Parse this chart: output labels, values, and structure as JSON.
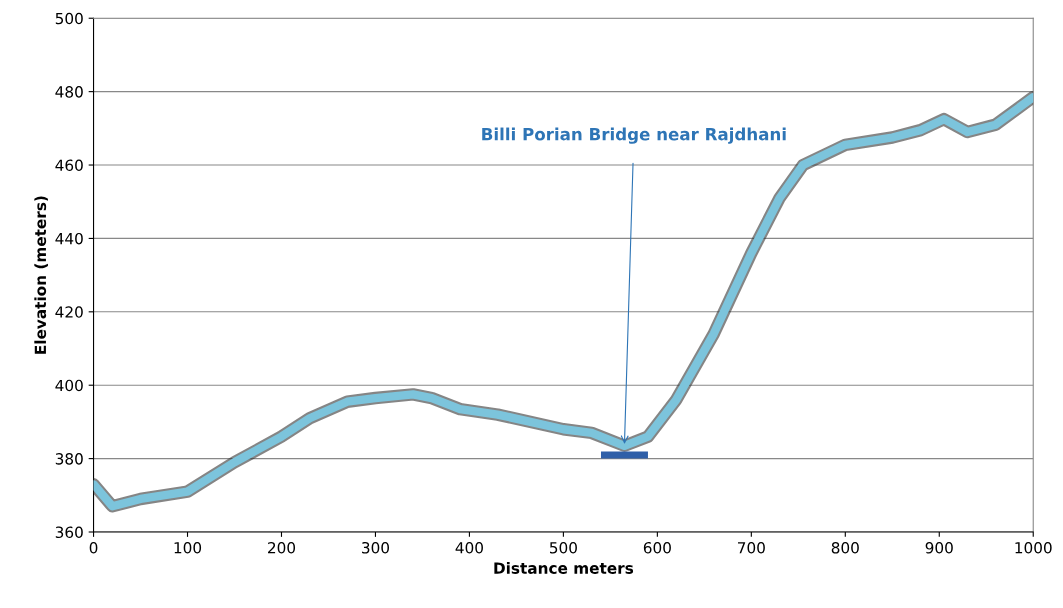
{
  "chart_data": {
    "type": "line",
    "xlabel": "Distance meters",
    "ylabel": "Elevation (meters)",
    "xlim": [
      0,
      1000
    ],
    "xticks": [
      0,
      100,
      200,
      300,
      400,
      500,
      600,
      700,
      800,
      900,
      1000
    ],
    "ylim": [
      360,
      500
    ],
    "yticks": [
      360,
      380,
      400,
      420,
      440,
      460,
      480,
      500
    ],
    "grid": "y",
    "legend": false,
    "series": [
      {
        "color": "#7cc4dc",
        "x": [
          0,
          20,
          50,
          100,
          150,
          200,
          230,
          270,
          300,
          340,
          360,
          390,
          430,
          500,
          530,
          565,
          590,
          620,
          660,
          700,
          730,
          755,
          800,
          850,
          880,
          905,
          930,
          960,
          1000
        ],
        "values": [
          373,
          367,
          369,
          371,
          379,
          386,
          391,
          395.5,
          396.5,
          397.5,
          396.5,
          393.5,
          392,
          388,
          387,
          383.5,
          386,
          396,
          414,
          436,
          451,
          460,
          465.5,
          467.5,
          469.5,
          472.5,
          469,
          471,
          478.5
        ]
      },
      {
        "color": "#2f5fa8",
        "x": [
          540,
          590
        ],
        "values": [
          381,
          381
        ]
      }
    ],
    "annotations": [
      {
        "text": "Billi Porian Bridge near Rajdhani",
        "x": 565,
        "y": 384
      }
    ]
  }
}
